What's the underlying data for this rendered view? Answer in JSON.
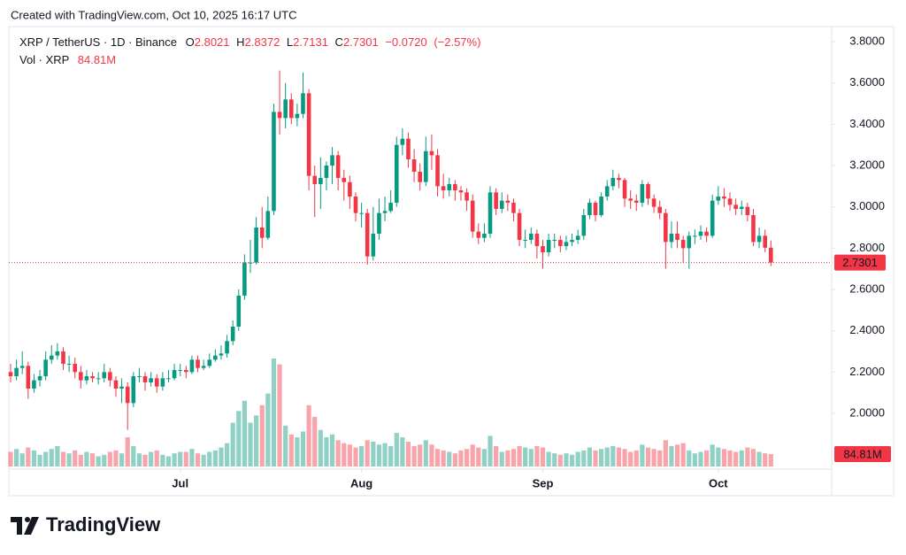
{
  "branding": {
    "created": "Created with TradingView.com, Oct 10, 2025 16:17 UTC",
    "logo": "TradingView"
  },
  "chart_data": {
    "type": "candlestick",
    "title": "XRP / TetherUS · 1D · Binance",
    "ohlc_labels": [
      "O",
      "H",
      "L",
      "C"
    ],
    "change": "−0.0720",
    "change_pct": "(−2.57%)",
    "volume_name": "Vol · XRP",
    "last_volume_label": "84.81M",
    "up_color": "#089981",
    "down_color": "#f23645",
    "grid": false,
    "ylim": [
      1.73,
      3.873
    ],
    "yticks": [
      {
        "value": 2.0,
        "label": "2.0000"
      },
      {
        "value": 2.2,
        "label": "2.2000"
      },
      {
        "value": 2.4,
        "label": "2.4000"
      },
      {
        "value": 2.6,
        "label": "2.6000"
      },
      {
        "value": 2.8,
        "label": "2.8000"
      },
      {
        "value": 3.0,
        "label": "3.0000"
      },
      {
        "value": 3.2,
        "label": "3.2000"
      },
      {
        "value": 3.4,
        "label": "3.4000"
      },
      {
        "value": 3.6,
        "label": "3.6000"
      },
      {
        "value": 3.8,
        "label": "3.8000"
      }
    ],
    "xticks": [
      {
        "value": 29,
        "label": "Jul"
      },
      {
        "value": 60,
        "label": "Aug"
      },
      {
        "value": 91,
        "label": "Sep"
      },
      {
        "value": 121,
        "label": "Oct"
      }
    ],
    "open": [
      2.2,
      2.18,
      2.22,
      2.23,
      2.12,
      2.16,
      2.18,
      2.26,
      2.28,
      2.3,
      2.24,
      2.24,
      2.2,
      2.16,
      2.18,
      2.17,
      2.17,
      2.2,
      2.16,
      2.12,
      2.13,
      2.05,
      2.18,
      2.18,
      2.15,
      2.17,
      2.13,
      2.17,
      2.17,
      2.21,
      2.21,
      2.2,
      2.26,
      2.22,
      2.23,
      2.26,
      2.28,
      2.29,
      2.35,
      2.42,
      2.57,
      2.73,
      2.73,
      2.9,
      2.85,
      2.98,
      3.46,
      3.43,
      3.52,
      3.43,
      3.45,
      3.55,
      3.15,
      3.11,
      3.14,
      3.2,
      3.25,
      3.14,
      3.12,
      3.05,
      2.97,
      2.97,
      2.76,
      2.87,
      2.97,
      2.98,
      3.02,
      3.3,
      3.33,
      3.23,
      3.17,
      3.12,
      3.27,
      3.25,
      3.1,
      3.08,
      3.11,
      3.08,
      3.07,
      3.03,
      2.88,
      2.85,
      2.87,
      3.07,
      2.99,
      3.03,
      3.02,
      2.97,
      2.84,
      2.84,
      2.87,
      2.81,
      2.78,
      2.84,
      2.84,
      2.81,
      2.83,
      2.84,
      2.86,
      2.96,
      3.02,
      2.96,
      3.05,
      3.1,
      3.14,
      3.13,
      3.04,
      3.03,
      3.02,
      3.11,
      3.04,
      3.0,
      2.97,
      2.83,
      2.87,
      2.84,
      2.8,
      2.86,
      2.86,
      2.88,
      2.86,
      3.03,
      3.05,
      3.04,
      3.01,
      2.99,
      3.0,
      2.96,
      2.83,
      2.86,
      2.8021
    ],
    "high": [
      2.24,
      2.26,
      2.3,
      2.25,
      2.19,
      2.21,
      2.3,
      2.33,
      2.34,
      2.32,
      2.28,
      2.27,
      2.23,
      2.21,
      2.2,
      2.2,
      2.24,
      2.22,
      2.18,
      2.17,
      2.15,
      2.2,
      2.22,
      2.2,
      2.2,
      2.19,
      2.2,
      2.21,
      2.24,
      2.24,
      2.23,
      2.28,
      2.28,
      2.26,
      2.29,
      2.31,
      2.33,
      2.38,
      2.45,
      2.6,
      2.77,
      2.84,
      2.95,
      3.0,
      3.05,
      3.5,
      3.66,
      3.6,
      3.55,
      3.5,
      3.65,
      3.57,
      3.2,
      3.24,
      3.22,
      3.29,
      3.27,
      3.18,
      3.15,
      3.07,
      3.02,
      2.99,
      3.0,
      3.04,
      3.05,
      3.08,
      3.34,
      3.38,
      3.36,
      3.28,
      3.21,
      3.34,
      3.35,
      3.28,
      3.16,
      3.14,
      3.13,
      3.1,
      3.09,
      3.06,
      2.92,
      2.92,
      3.1,
      3.09,
      3.07,
      3.06,
      3.04,
      2.99,
      2.89,
      2.9,
      2.89,
      2.84,
      2.87,
      2.87,
      2.86,
      2.86,
      2.87,
      2.89,
      2.99,
      3.04,
      3.03,
      3.07,
      3.13,
      3.18,
      3.16,
      3.14,
      3.08,
      3.06,
      3.13,
      3.12,
      3.06,
      3.03,
      2.99,
      2.93,
      2.93,
      2.86,
      2.88,
      2.89,
      2.91,
      2.9,
      3.06,
      3.1,
      3.09,
      3.07,
      3.04,
      3.03,
      3.02,
      2.99,
      2.9,
      2.89,
      2.8372
    ],
    "low": [
      2.15,
      2.16,
      2.19,
      2.07,
      2.1,
      2.13,
      2.16,
      2.24,
      2.26,
      2.21,
      2.2,
      2.17,
      2.12,
      2.14,
      2.15,
      2.14,
      2.15,
      2.13,
      2.08,
      2.05,
      1.92,
      2.03,
      2.15,
      2.11,
      2.13,
      2.1,
      2.11,
      2.15,
      2.16,
      2.18,
      2.17,
      2.19,
      2.2,
      2.21,
      2.22,
      2.25,
      2.26,
      2.27,
      2.33,
      2.4,
      2.55,
      2.68,
      2.72,
      2.8,
      2.84,
      2.96,
      3.35,
      3.38,
      3.4,
      3.39,
      3.43,
      3.08,
      2.95,
      2.99,
      3.08,
      3.11,
      3.08,
      3.03,
      2.99,
      2.93,
      2.9,
      2.72,
      2.74,
      2.84,
      2.93,
      2.97,
      3.0,
      3.25,
      3.19,
      3.12,
      3.08,
      3.1,
      3.18,
      3.05,
      3.04,
      3.05,
      3.03,
      3.03,
      2.98,
      2.85,
      2.82,
      2.83,
      2.85,
      2.96,
      2.97,
      2.98,
      2.93,
      2.81,
      2.8,
      2.82,
      2.75,
      2.7,
      2.76,
      2.8,
      2.78,
      2.79,
      2.81,
      2.82,
      2.84,
      2.94,
      2.93,
      2.95,
      3.03,
      3.08,
      3.09,
      3.0,
      2.99,
      2.98,
      3.0,
      3.01,
      2.97,
      2.94,
      2.7,
      2.8,
      2.8,
      2.73,
      2.7,
      2.82,
      2.84,
      2.83,
      2.85,
      3.01,
      3.0,
      2.98,
      2.96,
      2.96,
      2.93,
      2.81,
      2.8,
      2.78,
      2.7131
    ],
    "close": [
      2.18,
      2.22,
      2.23,
      2.12,
      2.16,
      2.18,
      2.26,
      2.28,
      2.3,
      2.24,
      2.24,
      2.2,
      2.16,
      2.18,
      2.17,
      2.17,
      2.2,
      2.16,
      2.12,
      2.13,
      2.05,
      2.18,
      2.18,
      2.15,
      2.17,
      2.13,
      2.17,
      2.17,
      2.21,
      2.21,
      2.2,
      2.26,
      2.22,
      2.23,
      2.26,
      2.28,
      2.29,
      2.35,
      2.42,
      2.57,
      2.73,
      2.73,
      2.9,
      2.85,
      2.98,
      3.46,
      3.43,
      3.52,
      3.43,
      3.45,
      3.55,
      3.15,
      3.11,
      3.14,
      3.2,
      3.25,
      3.14,
      3.12,
      3.05,
      2.97,
      2.97,
      2.76,
      2.87,
      2.97,
      2.98,
      3.02,
      3.3,
      3.33,
      3.23,
      3.17,
      3.12,
      3.27,
      3.25,
      3.1,
      3.08,
      3.11,
      3.08,
      3.07,
      3.03,
      2.88,
      2.85,
      2.87,
      3.07,
      2.99,
      3.03,
      3.02,
      2.97,
      2.84,
      2.84,
      2.87,
      2.81,
      2.78,
      2.84,
      2.84,
      2.81,
      2.83,
      2.84,
      2.86,
      2.96,
      3.02,
      2.96,
      3.05,
      3.1,
      3.14,
      3.13,
      3.04,
      3.03,
      3.02,
      3.11,
      3.04,
      3.0,
      2.97,
      2.83,
      2.87,
      2.84,
      2.8,
      2.86,
      2.86,
      2.88,
      2.86,
      3.03,
      3.05,
      3.04,
      3.01,
      2.99,
      3.0,
      2.96,
      2.83,
      2.86,
      2.8021,
      2.7301
    ],
    "volume": [
      100,
      120,
      90,
      130,
      110,
      80,
      100,
      120,
      140,
      100,
      90,
      110,
      80,
      100,
      90,
      70,
      80,
      100,
      110,
      90,
      200,
      140,
      90,
      80,
      100,
      110,
      80,
      70,
      90,
      100,
      100,
      120,
      90,
      80,
      100,
      110,
      130,
      160,
      300,
      380,
      450,
      300,
      350,
      420,
      500,
      740,
      700,
      280,
      220,
      200,
      240,
      420,
      340,
      250,
      200,
      220,
      180,
      160,
      150,
      130,
      140,
      180,
      170,
      150,
      160,
      140,
      230,
      200,
      170,
      140,
      150,
      180,
      150,
      120,
      110,
      100,
      90,
      110,
      120,
      150,
      130,
      120,
      210,
      140,
      100,
      110,
      120,
      140,
      130,
      120,
      140,
      130,
      100,
      90,
      80,
      90,
      80,
      100,
      110,
      130,
      110,
      120,
      130,
      140,
      130,
      120,
      100,
      110,
      150,
      130,
      120,
      110,
      180,
      140,
      150,
      160,
      110,
      90,
      100,
      110,
      150,
      130,
      120,
      110,
      100,
      110,
      130,
      120,
      100,
      90,
      84.81
    ]
  }
}
